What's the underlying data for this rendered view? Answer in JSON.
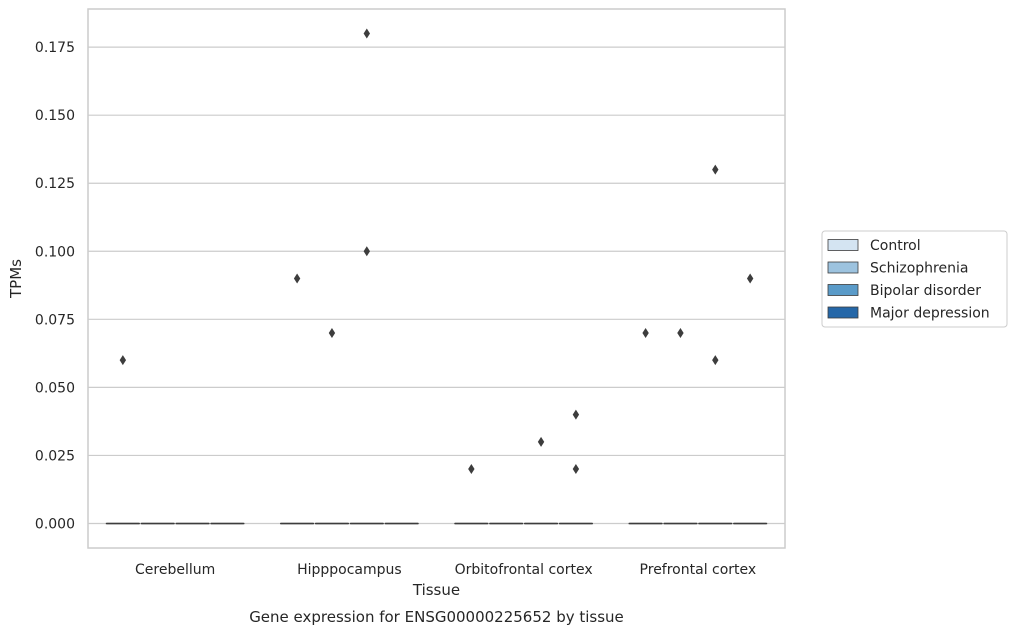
{
  "chart_data": {
    "type": "box",
    "title": "",
    "caption": "Gene expression for ENSG00000225652 by tissue",
    "xlabel": "Tissue",
    "ylabel": "TPMs",
    "ylim": [
      -0.009,
      0.189
    ],
    "yticks": [
      0.0,
      0.025,
      0.05,
      0.075,
      0.1,
      0.125,
      0.15,
      0.175
    ],
    "ytick_labels": [
      "0.000",
      "0.025",
      "0.050",
      "0.075",
      "0.100",
      "0.125",
      "0.150",
      "0.175"
    ],
    "grid": true,
    "legend_position": "right",
    "categories": [
      "Cerebellum",
      "Hipppocampus",
      "Orbitofrontal cortex",
      "Prefrontal cortex"
    ],
    "series": [
      {
        "name": "Control",
        "color": "#d4e4f2",
        "boxes": [
          {
            "median": 0,
            "q1": 0,
            "q3": 0
          },
          {
            "median": 0,
            "q1": 0,
            "q3": 0
          },
          {
            "median": 0,
            "q1": 0,
            "q3": 0
          },
          {
            "median": 0,
            "q1": 0,
            "q3": 0
          }
        ],
        "outliers": [
          [
            0.06
          ],
          [
            0.09
          ],
          [
            0.02
          ],
          [
            0.07
          ]
        ]
      },
      {
        "name": "Schizophrenia",
        "color": "#9dc3df",
        "boxes": [
          {
            "median": 0,
            "q1": 0,
            "q3": 0
          },
          {
            "median": 0,
            "q1": 0,
            "q3": 0
          },
          {
            "median": 0,
            "q1": 0,
            "q3": 0
          },
          {
            "median": 0,
            "q1": 0,
            "q3": 0
          }
        ],
        "outliers": [
          [],
          [
            0.07
          ],
          [],
          [
            0.07
          ]
        ]
      },
      {
        "name": "Bipolar disorder",
        "color": "#5a9bc9",
        "boxes": [
          {
            "median": 0,
            "q1": 0,
            "q3": 0
          },
          {
            "median": 0,
            "q1": 0,
            "q3": 0
          },
          {
            "median": 0,
            "q1": 0,
            "q3": 0
          },
          {
            "median": 0,
            "q1": 0,
            "q3": 0
          }
        ],
        "outliers": [
          [],
          [
            0.18,
            0.1
          ],
          [
            0.03
          ],
          [
            0.13,
            0.06
          ]
        ]
      },
      {
        "name": "Major depression",
        "color": "#2567a8",
        "boxes": [
          {
            "median": 0,
            "q1": 0,
            "q3": 0
          },
          {
            "median": 0,
            "q1": 0,
            "q3": 0
          },
          {
            "median": 0,
            "q1": 0,
            "q3": 0
          },
          {
            "median": 0,
            "q1": 0,
            "q3": 0
          }
        ],
        "outliers": [
          [],
          [],
          [
            0.04,
            0.02
          ],
          [
            0.09
          ]
        ]
      }
    ]
  }
}
